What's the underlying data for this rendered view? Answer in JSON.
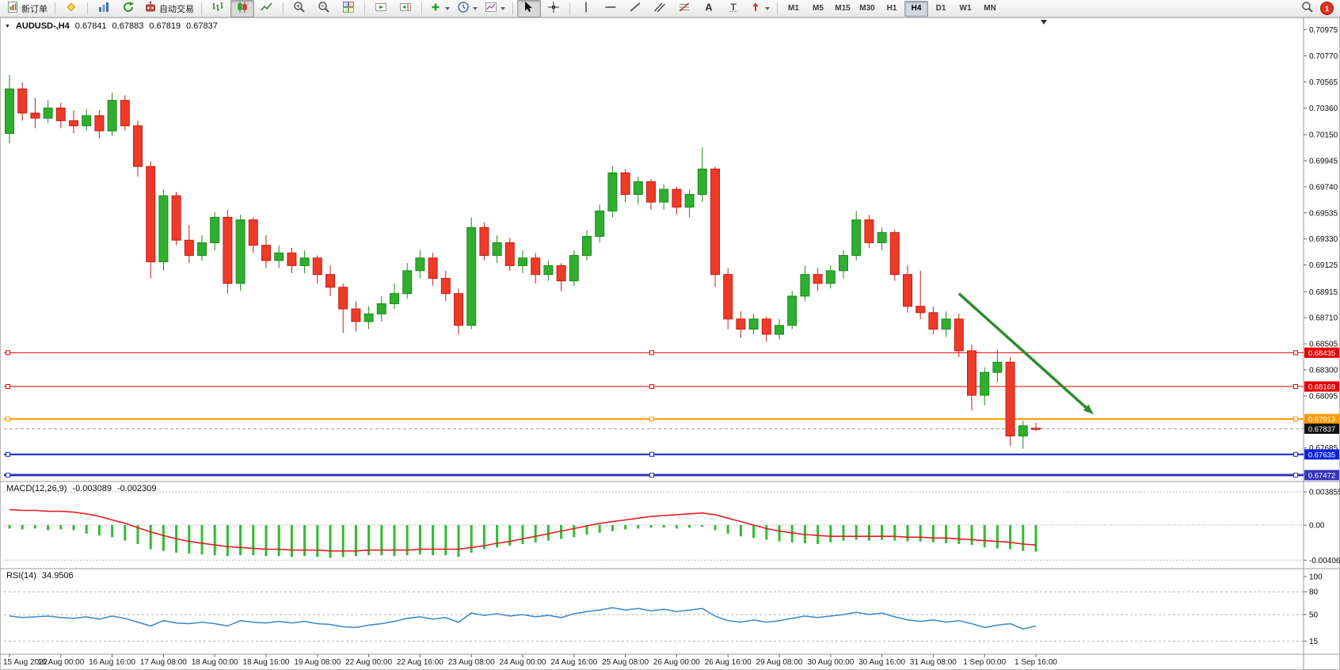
{
  "toolbar": {
    "new_order_label": "新订单",
    "auto_trading_label": "自动交易",
    "timeframes": [
      "M1",
      "M5",
      "M15",
      "M30",
      "H1",
      "H4",
      "D1",
      "W1",
      "MN"
    ],
    "active_timeframe": "H4",
    "notification_count": "1"
  },
  "header": {
    "symbol": "AUDUSD-,H4",
    "open": "0.67841",
    "high": "0.67883",
    "low": "0.67819",
    "close": "0.67837"
  },
  "macd_label": {
    "name": "MACD(12,26,9)",
    "main": "-0.003089",
    "signal": "-0.002309"
  },
  "rsi_label": {
    "name": "RSI(14)",
    "value": "34.9506"
  },
  "chart_data": {
    "type": "candlestick",
    "symbol": "AUDUSD-",
    "timeframe": "H4",
    "colors": {
      "up": "#2fae2f",
      "up_border": "#1e8a1e",
      "down": "#ee3a28",
      "down_border": "#c32116",
      "macd_hist": "#33bb33",
      "macd_signal": "#e02020",
      "rsi_line": "#3c87c8",
      "arrow": "#2e8b2e"
    },
    "price_axis_labels": [
      "0.70975",
      "0.70770",
      "0.70565",
      "0.70360",
      "0.70150",
      "0.69945",
      "0.69740",
      "0.69535",
      "0.69330",
      "0.69125",
      "0.68915",
      "0.68710",
      "0.68505",
      "0.68300",
      "0.68095",
      "0.67890",
      "0.67685",
      "0.67480"
    ],
    "time_labels": [
      "15 Aug 2022",
      "16 Aug 00:00",
      "16 Aug 16:00",
      "17 Aug 08:00",
      "18 Aug 00:00",
      "18 Aug 16:00",
      "19 Aug 08:00",
      "22 Aug 00:00",
      "22 Aug 16:00",
      "23 Aug 08:00",
      "24 Aug 00:00",
      "24 Aug 16:00",
      "25 Aug 08:00",
      "26 Aug 00:00",
      "26 Aug 16:00",
      "29 Aug 08:00",
      "30 Aug 00:00",
      "30 Aug 16:00",
      "31 Aug 08:00",
      "1 Sep 00:00",
      "1 Sep 16:00"
    ],
    "candles": [
      [
        0.7016,
        0.7062,
        0.7008,
        0.7051
      ],
      [
        0.7051,
        0.7056,
        0.7026,
        0.7032
      ],
      [
        0.7032,
        0.7044,
        0.702,
        0.7028
      ],
      [
        0.7028,
        0.7042,
        0.7024,
        0.7036
      ],
      [
        0.7036,
        0.704,
        0.702,
        0.7026
      ],
      [
        0.7026,
        0.7034,
        0.7016,
        0.7022
      ],
      [
        0.7022,
        0.7035,
        0.7018,
        0.703
      ],
      [
        0.703,
        0.7034,
        0.7012,
        0.7018
      ],
      [
        0.7018,
        0.7048,
        0.7014,
        0.7042
      ],
      [
        0.7042,
        0.7046,
        0.7018,
        0.7022
      ],
      [
        0.7022,
        0.7026,
        0.6982,
        0.699
      ],
      [
        0.699,
        0.6994,
        0.6902,
        0.6915
      ],
      [
        0.6915,
        0.6972,
        0.6908,
        0.6967
      ],
      [
        0.6967,
        0.697,
        0.6928,
        0.6932
      ],
      [
        0.6932,
        0.6944,
        0.6914,
        0.692
      ],
      [
        0.692,
        0.6936,
        0.6916,
        0.693
      ],
      [
        0.693,
        0.6954,
        0.6924,
        0.695
      ],
      [
        0.695,
        0.6956,
        0.689,
        0.6898
      ],
      [
        0.6898,
        0.6952,
        0.6892,
        0.6948
      ],
      [
        0.6948,
        0.695,
        0.6922,
        0.6928
      ],
      [
        0.6928,
        0.6936,
        0.691,
        0.6916
      ],
      [
        0.6916,
        0.6928,
        0.691,
        0.6922
      ],
      [
        0.6922,
        0.6926,
        0.6906,
        0.6912
      ],
      [
        0.6912,
        0.6924,
        0.6906,
        0.6918
      ],
      [
        0.6918,
        0.692,
        0.6898,
        0.6905
      ],
      [
        0.6905,
        0.6912,
        0.6888,
        0.6895
      ],
      [
        0.6895,
        0.6898,
        0.6859,
        0.6878
      ],
      [
        0.6878,
        0.6884,
        0.686,
        0.6868
      ],
      [
        0.6868,
        0.688,
        0.6862,
        0.6874
      ],
      [
        0.6874,
        0.6888,
        0.6868,
        0.6882
      ],
      [
        0.6882,
        0.6898,
        0.6878,
        0.689
      ],
      [
        0.689,
        0.6914,
        0.6886,
        0.6908
      ],
      [
        0.6908,
        0.6924,
        0.6902,
        0.6918
      ],
      [
        0.6918,
        0.6922,
        0.6896,
        0.6902
      ],
      [
        0.6902,
        0.6908,
        0.6884,
        0.689
      ],
      [
        0.689,
        0.6894,
        0.6858,
        0.6865
      ],
      [
        0.6865,
        0.695,
        0.6862,
        0.6942
      ],
      [
        0.6942,
        0.6946,
        0.6916,
        0.692
      ],
      [
        0.692,
        0.6936,
        0.6914,
        0.693
      ],
      [
        0.693,
        0.6934,
        0.6908,
        0.6912
      ],
      [
        0.6912,
        0.6924,
        0.6906,
        0.6918
      ],
      [
        0.6918,
        0.6922,
        0.6898,
        0.6905
      ],
      [
        0.6905,
        0.6916,
        0.69,
        0.6912
      ],
      [
        0.6912,
        0.6914,
        0.6892,
        0.69
      ],
      [
        0.69,
        0.6924,
        0.6896,
        0.692
      ],
      [
        0.692,
        0.694,
        0.6916,
        0.6935
      ],
      [
        0.6935,
        0.696,
        0.693,
        0.6955
      ],
      [
        0.6955,
        0.699,
        0.695,
        0.6985
      ],
      [
        0.6985,
        0.6988,
        0.6962,
        0.6968
      ],
      [
        0.6968,
        0.6982,
        0.696,
        0.6978
      ],
      [
        0.6978,
        0.698,
        0.6956,
        0.6962
      ],
      [
        0.6962,
        0.6976,
        0.6956,
        0.6972
      ],
      [
        0.6972,
        0.6974,
        0.6952,
        0.6958
      ],
      [
        0.6958,
        0.6972,
        0.695,
        0.6968
      ],
      [
        0.6968,
        0.7005,
        0.6962,
        0.6988
      ],
      [
        0.6988,
        0.699,
        0.6895,
        0.6905
      ],
      [
        0.6905,
        0.691,
        0.6862,
        0.687
      ],
      [
        0.687,
        0.6876,
        0.6855,
        0.6862
      ],
      [
        0.6862,
        0.6874,
        0.6858,
        0.687
      ],
      [
        0.687,
        0.6872,
        0.6852,
        0.6858
      ],
      [
        0.6858,
        0.687,
        0.6854,
        0.6865
      ],
      [
        0.6865,
        0.6892,
        0.6862,
        0.6888
      ],
      [
        0.6888,
        0.6912,
        0.6884,
        0.6905
      ],
      [
        0.6905,
        0.691,
        0.6892,
        0.6898
      ],
      [
        0.6898,
        0.6912,
        0.6894,
        0.6908
      ],
      [
        0.6908,
        0.6924,
        0.6902,
        0.692
      ],
      [
        0.692,
        0.6955,
        0.6916,
        0.6948
      ],
      [
        0.6948,
        0.6952,
        0.6926,
        0.693
      ],
      [
        0.693,
        0.6942,
        0.6924,
        0.6938
      ],
      [
        0.6938,
        0.694,
        0.69,
        0.6905
      ],
      [
        0.6905,
        0.6912,
        0.6875,
        0.688
      ],
      [
        0.688,
        0.6908,
        0.687,
        0.6875
      ],
      [
        0.6875,
        0.688,
        0.6858,
        0.6862
      ],
      [
        0.6862,
        0.6876,
        0.6856,
        0.687
      ],
      [
        0.687,
        0.6874,
        0.684,
        0.6845
      ],
      [
        0.6845,
        0.685,
        0.6798,
        0.681
      ],
      [
        0.681,
        0.6832,
        0.6802,
        0.6828
      ],
      [
        0.6828,
        0.6846,
        0.682,
        0.6836
      ],
      [
        0.6836,
        0.684,
        0.677,
        0.6778
      ],
      [
        0.6778,
        0.679,
        0.6768,
        0.6786
      ],
      [
        0.67841,
        0.67883,
        0.67819,
        0.67837
      ]
    ],
    "levels": [
      {
        "price": 0.68435,
        "label": "0.68435",
        "color": "#e60000",
        "width": 1
      },
      {
        "price": 0.68169,
        "label": "0.68169",
        "color": "#e60000",
        "width": 1
      },
      {
        "price": 0.67913,
        "label": "0.67913",
        "color": "#ff9900",
        "width": 2
      },
      {
        "price": 0.67635,
        "label": "0.67635",
        "color": "#0a23d6",
        "width": 2
      },
      {
        "price": 0.67472,
        "label": "0.67472",
        "color": "#3434b8",
        "width": 3
      }
    ],
    "current_price": {
      "price": 0.67837,
      "label": "0.67837",
      "color": "#111111"
    },
    "trend_arrow": {
      "from_bar": 74,
      "from_price": 0.689,
      "to_bar": 84.5,
      "to_price": 0.6795
    },
    "macd": {
      "axis_labels": [
        "0.003855",
        "0.00",
        "-0.004067"
      ],
      "scale_max": 0.003855,
      "scale_min": -0.004067,
      "histogram": [
        -0.0004,
        -0.0005,
        -0.0004,
        -0.0006,
        -0.0005,
        -0.0006,
        -0.001,
        -0.0012,
        -0.0014,
        -0.0018,
        -0.0022,
        -0.0028,
        -0.003,
        -0.0032,
        -0.0033,
        -0.0034,
        -0.0035,
        -0.0036,
        -0.0035,
        -0.0035,
        -0.0036,
        -0.0036,
        -0.0037,
        -0.0036,
        -0.0037,
        -0.0038,
        -0.0037,
        -0.0036,
        -0.0035,
        -0.0035,
        -0.0036,
        -0.0035,
        -0.0034,
        -0.0035,
        -0.0035,
        -0.0037,
        -0.0032,
        -0.0028,
        -0.0026,
        -0.0024,
        -0.0022,
        -0.002,
        -0.0018,
        -0.0016,
        -0.0014,
        -0.0011,
        -0.0009,
        -0.0007,
        -0.0005,
        -0.0004,
        -0.0003,
        -0.0003,
        -0.0004,
        -0.0003,
        -0.0002,
        -0.0006,
        -0.001,
        -0.0013,
        -0.0015,
        -0.0017,
        -0.0019,
        -0.002,
        -0.0021,
        -0.0022,
        -0.002,
        -0.0018,
        -0.0017,
        -0.0018,
        -0.0017,
        -0.0018,
        -0.0019,
        -0.0019,
        -0.002,
        -0.0021,
        -0.0022,
        -0.0023,
        -0.0026,
        -0.0027,
        -0.0028,
        -0.003,
        -0.003089
      ],
      "signal": [
        0.0018,
        0.0017,
        0.0017,
        0.0016,
        0.0016,
        0.0015,
        0.0013,
        0.001,
        0.0006,
        0.0002,
        -0.0003,
        -0.0008,
        -0.0012,
        -0.0016,
        -0.0019,
        -0.0021,
        -0.0023,
        -0.0025,
        -0.0026,
        -0.0027,
        -0.0028,
        -0.0028,
        -0.0029,
        -0.0029,
        -0.0029,
        -0.003,
        -0.003,
        -0.003,
        -0.0029,
        -0.0029,
        -0.0029,
        -0.0029,
        -0.0028,
        -0.0028,
        -0.0028,
        -0.0028,
        -0.0026,
        -0.0024,
        -0.0021,
        -0.0019,
        -0.0016,
        -0.0013,
        -0.001,
        -0.0007,
        -0.0004,
        -0.0001,
        0.0002,
        0.0004,
        0.0006,
        0.0008,
        0.001,
        0.0011,
        0.0012,
        0.0013,
        0.0014,
        0.0012,
        0.0008,
        0.0004,
        0,
        -0.0004,
        -0.0007,
        -0.0009,
        -0.0011,
        -0.0012,
        -0.0013,
        -0.0013,
        -0.0013,
        -0.0013,
        -0.0013,
        -0.0013,
        -0.0014,
        -0.0014,
        -0.0015,
        -0.0015,
        -0.0016,
        -0.0017,
        -0.0018,
        -0.0019,
        -0.002,
        -0.0022,
        -0.002309
      ]
    },
    "rsi": {
      "axis_labels": [
        "100",
        "80",
        "50",
        "15"
      ],
      "level_lines": [
        80,
        50,
        15
      ],
      "values": [
        48,
        46,
        47,
        48,
        46,
        45,
        47,
        44,
        48,
        45,
        40,
        35,
        42,
        39,
        38,
        40,
        38,
        35,
        42,
        40,
        39,
        41,
        39,
        41,
        38,
        37,
        34,
        33,
        36,
        38,
        41,
        45,
        47,
        44,
        46,
        40,
        52,
        49,
        51,
        48,
        50,
        47,
        49,
        46,
        51,
        54,
        56,
        59,
        56,
        58,
        55,
        57,
        54,
        56,
        58,
        48,
        42,
        40,
        43,
        40,
        42,
        45,
        48,
        46,
        48,
        50,
        53,
        50,
        52,
        47,
        43,
        41,
        43,
        40,
        42,
        38,
        33,
        36,
        38,
        31,
        34.95
      ]
    }
  }
}
